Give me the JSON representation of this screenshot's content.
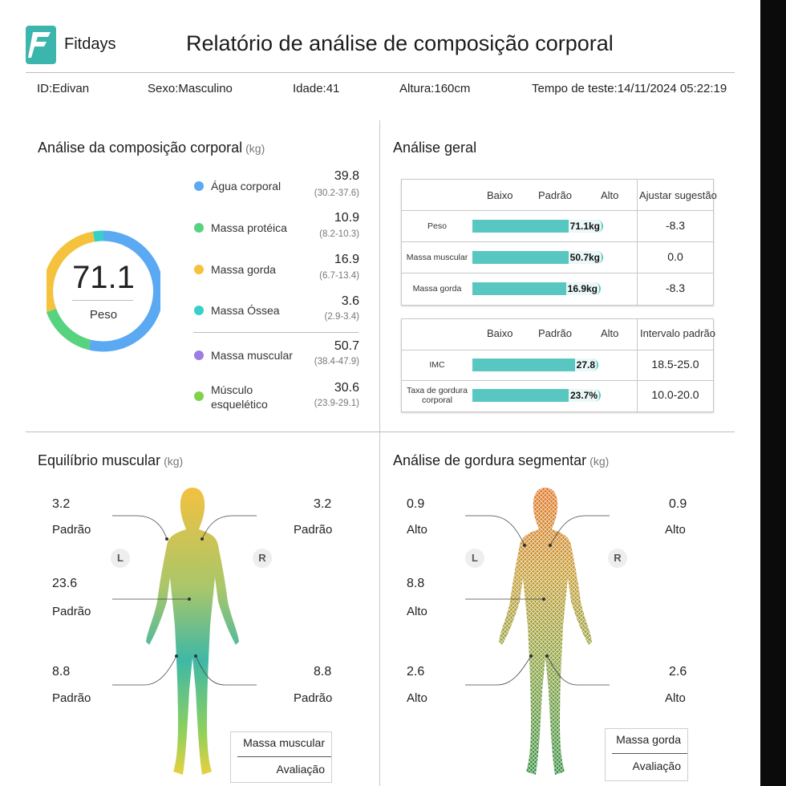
{
  "header": {
    "brand": "Fitdays",
    "title": "Relatório de análise de composição corporal",
    "id": "ID:Edivan",
    "sex": "Sexo:Masculino",
    "age": "Idade:41",
    "height": "Altura:160cm",
    "test_time": "Tempo de teste:14/11/2024 05:22:19"
  },
  "composition": {
    "title": "Análise da composição corporal",
    "unit": "(kg)",
    "weight": "71.1",
    "weight_label": "Peso",
    "items": [
      {
        "name": "Água corporal",
        "value": "39.8",
        "range": "(30.2-37.6)",
        "color": "#5aa9f2"
      },
      {
        "name": "Massa protéica",
        "value": "10.9",
        "range": "(8.2-10.3)",
        "color": "#57d27f"
      },
      {
        "name": "Massa gorda",
        "value": "16.9",
        "range": "(6.7-13.4)",
        "color": "#f5c23e"
      },
      {
        "name": "Massa Óssea",
        "value": "3.6",
        "range": "(2.9-3.4)",
        "color": "#36d0c8"
      },
      {
        "name": "Massa muscular",
        "value": "50.7",
        "range": "(38.4-47.9)",
        "color": "#9b7de5"
      },
      {
        "name": "Músculo esquelético",
        "name_l1": "Músculo",
        "name_l2": "esquelético",
        "value": "30.6",
        "range": "(23.9-29.1)",
        "color": "#7fd34a"
      }
    ]
  },
  "general": {
    "title": "Análise geral",
    "table1": {
      "headers": [
        "Baixo",
        "Padrão",
        "Alto",
        "Ajustar sugestão"
      ],
      "rows": [
        {
          "label": "Peso",
          "bar_text": "71.1kg",
          "bar_fraction": 0.98,
          "right": "-8.3"
        },
        {
          "label": "Massa muscular",
          "bar_text": "50.7kg",
          "bar_fraction": 0.98,
          "right": "0.0"
        },
        {
          "label": "Massa gorda",
          "bar_text": "16.9kg",
          "bar_fraction": 0.96,
          "right": "-8.3"
        }
      ]
    },
    "table2": {
      "headers": [
        "Baixo",
        "Padrão",
        "Alto",
        "Intervalo padrão"
      ],
      "rows": [
        {
          "label": "IMC",
          "bar_text": "27.8",
          "bar_fraction": 0.94,
          "right": "18.5-25.0"
        },
        {
          "label": "Taxa de gordura corporal",
          "label_l1": "Taxa de gordura",
          "label_l2": "corporal",
          "bar_text": "23.7%",
          "bar_fraction": 0.96,
          "right": "10.0-20.0"
        }
      ]
    }
  },
  "muscle": {
    "title": "Equilíbrio muscular",
    "unit": "(kg)",
    "left_arm": {
      "value": "3.2",
      "status": "Padrão"
    },
    "right_arm": {
      "value": "3.2",
      "status": "Padrão"
    },
    "trunk": {
      "value": "23.6",
      "status": "Padrão"
    },
    "left_leg": {
      "value": "8.8",
      "status": "Padrão"
    },
    "right_leg": {
      "value": "8.8",
      "status": "Padrão"
    },
    "L": "L",
    "R": "R",
    "legend_top": "Massa muscular",
    "legend_bottom": "Avaliação"
  },
  "fat": {
    "title": "Análise de gordura segmentar",
    "unit": "(kg)",
    "left_arm": {
      "value": "0.9",
      "status": "Alto"
    },
    "right_arm": {
      "value": "0.9",
      "status": "Alto"
    },
    "trunk": {
      "value": "8.8",
      "status": "Alto"
    },
    "left_leg": {
      "value": "2.6",
      "status": "Alto"
    },
    "right_leg": {
      "value": "2.6",
      "status": "Alto"
    },
    "L": "L",
    "R": "R",
    "legend_top": "Massa gorda",
    "legend_bottom": "Avaliação"
  }
}
